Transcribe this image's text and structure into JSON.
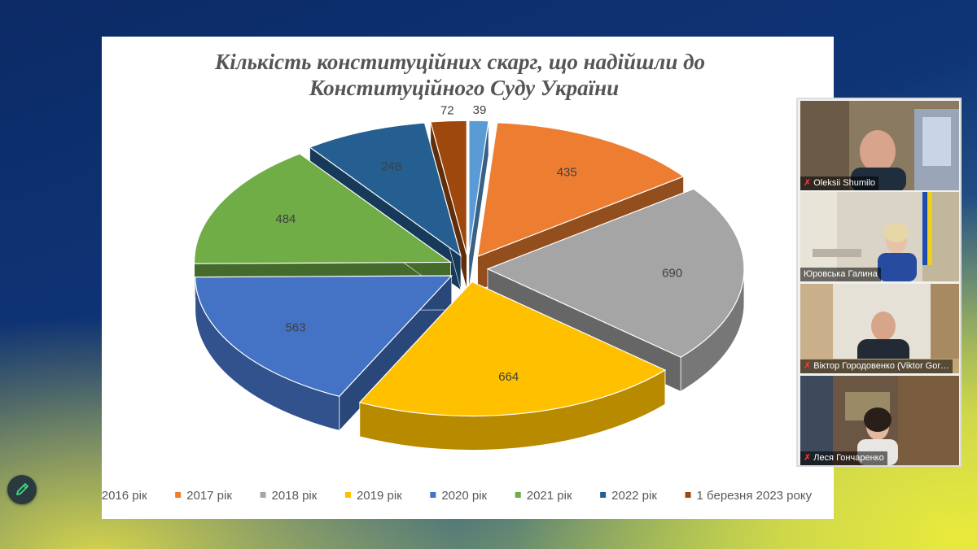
{
  "chart_data": {
    "type": "pie",
    "title_lines": [
      "Кількість конституційних скарг, що надійшли до",
      "Конституційного Суду України"
    ],
    "series": [
      {
        "name": "2016 рік",
        "value": 39,
        "color": "#5b9bd5"
      },
      {
        "name": "2017 рік",
        "value": 435,
        "color": "#ed7d31"
      },
      {
        "name": "2018 рік",
        "value": 690,
        "color": "#a5a5a5"
      },
      {
        "name": "2019 рік",
        "value": 664,
        "color": "#ffc000"
      },
      {
        "name": "2020 рік",
        "value": 563,
        "color": "#4472c4"
      },
      {
        "name": "2021 рік",
        "value": 484,
        "color": "#70ad47"
      },
      {
        "name": "2022 рік",
        "value": 248,
        "color": "#255e91"
      },
      {
        "name": "1 березня 2023 року",
        "value": 72,
        "color": "#9e480e"
      }
    ],
    "legend_position": "bottom",
    "style": "3d-exploded"
  },
  "participants": [
    {
      "name": "Oleksii Shumilo",
      "muted": true
    },
    {
      "name": "Юровська Галина",
      "muted": false
    },
    {
      "name": "Віктор Городовенко (Viktor Gor…",
      "muted": true
    },
    {
      "name": "Леся Гончаренко",
      "muted": true
    }
  ],
  "icons": {
    "annotate": "pencil-icon",
    "muted": "mic-off-icon"
  }
}
